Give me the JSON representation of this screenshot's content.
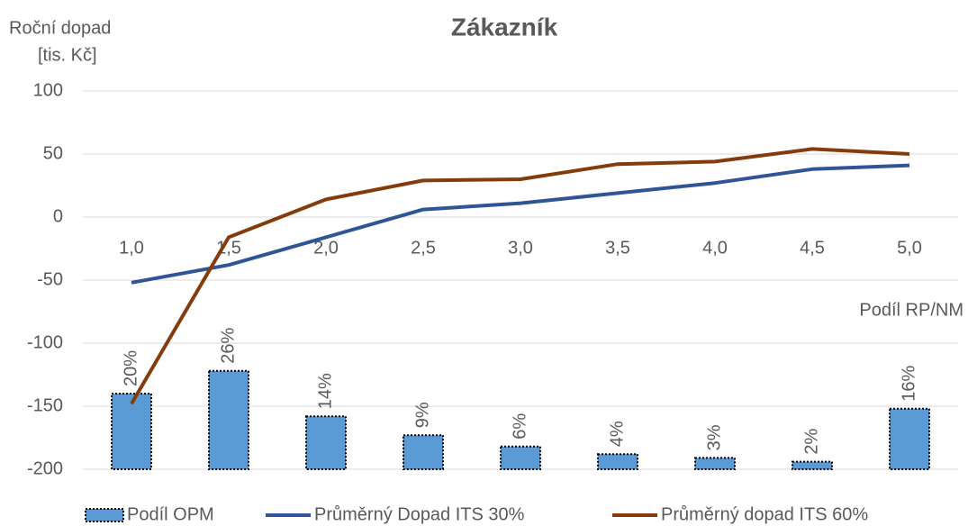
{
  "chart_data": {
    "type": "bar-line",
    "title": "Zákazník",
    "ylabel": [
      "Roční dopad",
      "[tis. Kč]"
    ],
    "xlabel": "Podíl RP/NM",
    "categories": [
      "1,0",
      "1,5",
      "2,0",
      "2,5",
      "3,0",
      "3,5",
      "4,0",
      "4,5",
      "5,0"
    ],
    "ylim": [
      -200,
      100
    ],
    "yticks": [
      -200,
      -150,
      -100,
      -50,
      0,
      50,
      100
    ],
    "y2lim": [
      0,
      100
    ],
    "grid": true,
    "legend": "bottom",
    "series": [
      {
        "name": "Podíl OPM",
        "type": "bar",
        "axis": "y2",
        "color": "#5b9bd5",
        "values": [
          20,
          26,
          14,
          9,
          6,
          4,
          3,
          2,
          16
        ],
        "value_labels": [
          "20%",
          "26%",
          "14%",
          "9%",
          "6%",
          "4%",
          "3%",
          "2%",
          "16%"
        ]
      },
      {
        "name": "Průměrný Dopad ITS 30%",
        "type": "line",
        "color": "#2f5597",
        "values": [
          -52,
          -38,
          -16,
          6,
          11,
          19,
          27,
          38,
          41
        ]
      },
      {
        "name": "Průměrný dopad ITS 60%",
        "type": "line",
        "color": "#843c0c",
        "values": [
          -148,
          -16,
          14,
          29,
          30,
          42,
          44,
          54,
          50
        ]
      }
    ]
  }
}
